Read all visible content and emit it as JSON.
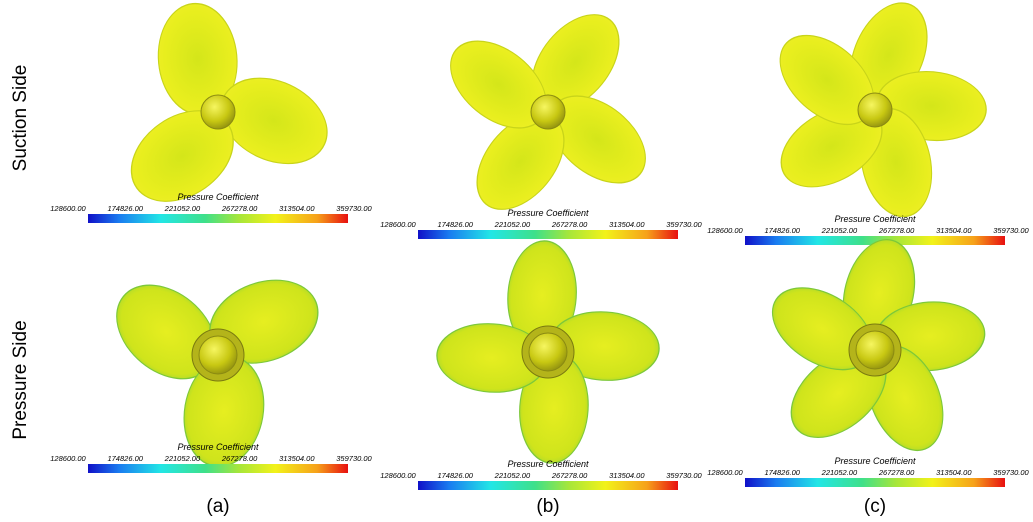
{
  "rows": [
    {
      "label": "Suction Side"
    },
    {
      "label": "Pressure Side"
    }
  ],
  "columns": [
    {
      "label": "(a)"
    },
    {
      "label": "(b)"
    },
    {
      "label": "(c)"
    }
  ],
  "panels": [
    [
      {
        "colorbar": {
          "title": "Pressure Coefficient",
          "ticks": [
            "128600.00",
            "174826.00",
            "221052.00",
            "267278.00",
            "313504.00",
            "359730.00"
          ]
        }
      },
      {
        "colorbar": {
          "title": "Pressure Coefficient",
          "ticks": [
            "128600.00",
            "174826.00",
            "221052.00",
            "267278.00",
            "313504.00",
            "359730.00"
          ]
        }
      },
      {
        "colorbar": {
          "title": "Pressure Coefficient",
          "ticks": [
            "128600.00",
            "174826.00",
            "221052.00",
            "267278.00",
            "313504.00",
            "359730.00"
          ]
        }
      }
    ],
    [
      {
        "colorbar": {
          "title": "Pressure Coefficient",
          "ticks": [
            "128600.00",
            "174826.00",
            "221052.00",
            "267278.00",
            "313504.00",
            "359730.00"
          ]
        }
      },
      {
        "colorbar": {
          "title": "Pressure Coefficient",
          "ticks": [
            "128600.00",
            "174826.00",
            "221052.00",
            "267278.00",
            "313504.00",
            "359730.00"
          ]
        }
      },
      {
        "colorbar": {
          "title": "Pressure Coefficient",
          "ticks": [
            "128600.00",
            "174826.00",
            "221052.00",
            "267278.00",
            "313504.00",
            "359730.00"
          ]
        }
      }
    ]
  ]
}
